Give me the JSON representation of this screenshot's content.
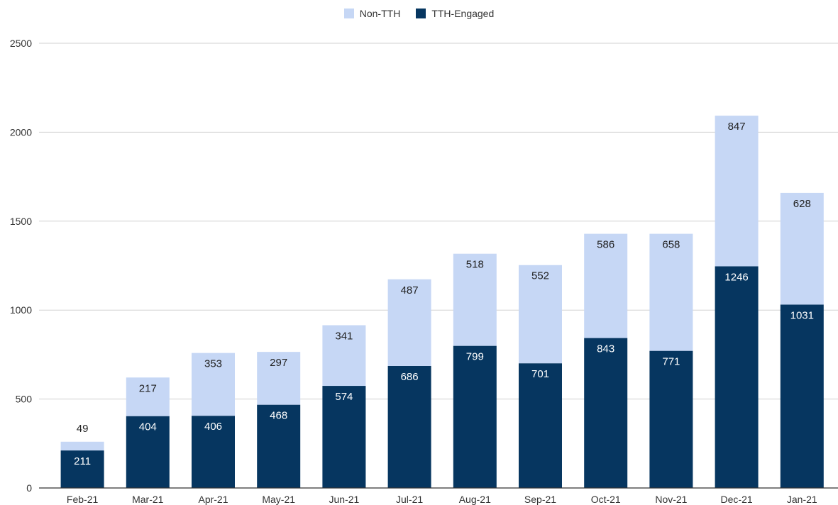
{
  "colors": {
    "non_tth": "#c6d7f5",
    "tth_engaged": "#063660",
    "grid": "#d0d0d0",
    "axis": "#333333",
    "label_dark": "#222222",
    "label_light": "#ffffff"
  },
  "chart_data": {
    "type": "bar",
    "stacked": true,
    "title": "",
    "xlabel": "",
    "ylabel": "",
    "ylim": [
      0,
      2500
    ],
    "yticks": [
      0,
      500,
      1000,
      1500,
      2000,
      2500
    ],
    "grid": true,
    "legend_position": "top-center",
    "categories": [
      "Feb-21",
      "Mar-21",
      "Apr-21",
      "May-21",
      "Jun-21",
      "Jul-21",
      "Aug-21",
      "Sep-21",
      "Oct-21",
      "Nov-21",
      "Dec-21",
      "Jan-21"
    ],
    "series": [
      {
        "name": "TTH-Engaged",
        "values": [
          211,
          404,
          406,
          468,
          574,
          686,
          799,
          701,
          843,
          771,
          1246,
          1031
        ]
      },
      {
        "name": "Non-TTH",
        "values": [
          49,
          217,
          353,
          297,
          341,
          487,
          518,
          552,
          586,
          658,
          847,
          628
        ]
      }
    ]
  }
}
